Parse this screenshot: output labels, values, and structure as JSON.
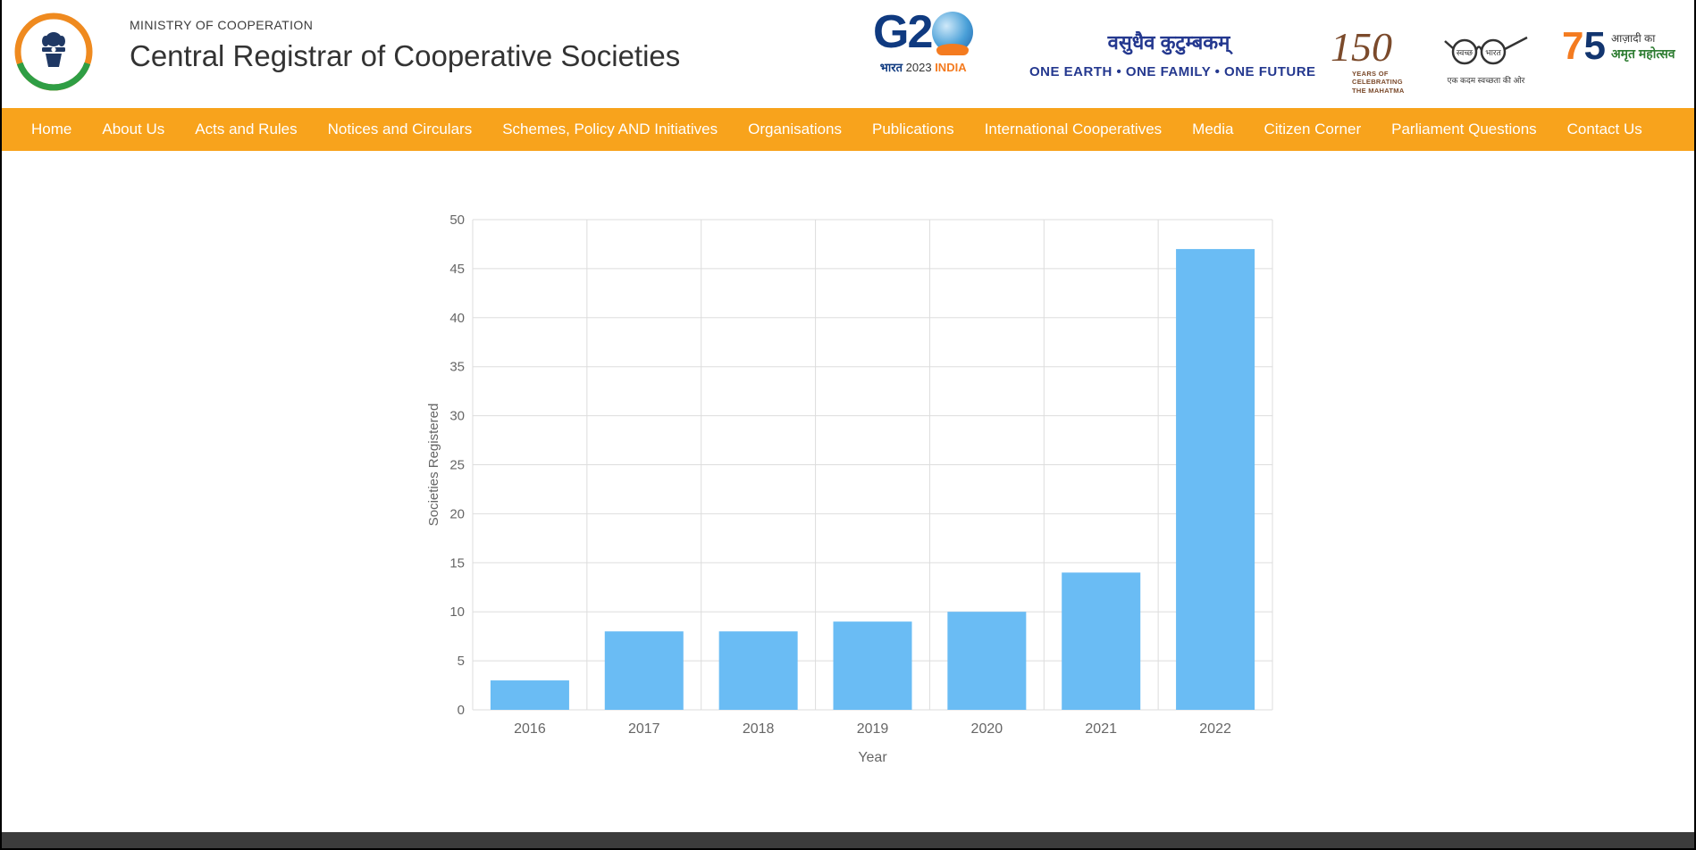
{
  "header": {
    "ministry": "MINISTRY OF COOPERATION",
    "title": "Central Registrar of Cooperative Societies",
    "logos": {
      "g20": {
        "text": "G2",
        "sub_bharat": "भारत",
        "sub_year": "2023",
        "sub_india": "INDIA"
      },
      "vasudhaiva": "वसुधैव कुटुम्बकम्",
      "tagline": "ONE EARTH • ONE FAMILY • ONE FUTURE",
      "mahatma150": {
        "number": "150",
        "caption_lines": [
          "YEARS OF",
          "CELEBRATING",
          "THE MAHATMA"
        ]
      },
      "swachh": {
        "word1": "स्वच्छ",
        "word2": "भारत",
        "tagline": "एक कदम स्वच्छता की ओर"
      },
      "azadi": {
        "seven": "7",
        "five": "5",
        "line1": "आज़ादी का",
        "line2": "अमृत महोत्सव"
      }
    }
  },
  "nav": {
    "bg_color": "#F8A31C",
    "items": [
      "Home",
      "About Us",
      "Acts and Rules",
      "Notices and Circulars",
      "Schemes, Policy AND Initiatives",
      "Organisations",
      "Publications",
      "International Cooperatives",
      "Media",
      "Citizen Corner",
      "Parliament Questions",
      "Contact Us"
    ]
  },
  "chart_data": {
    "type": "bar",
    "categories": [
      "2016",
      "2017",
      "2018",
      "2019",
      "2020",
      "2021",
      "2022"
    ],
    "values": [
      3,
      8,
      8,
      9,
      10,
      14,
      47
    ],
    "title": "",
    "xlabel": "Year",
    "ylabel": "Societies Registered",
    "ylim": [
      0,
      50
    ],
    "ytick_step": 5,
    "bar_color": "#6ABCF4",
    "grid": true,
    "grid_color": "#dddddd",
    "tick_color": "#666666"
  },
  "colors": {
    "nav_orange": "#F8A31C",
    "footer_gray": "#3c3c3c"
  }
}
